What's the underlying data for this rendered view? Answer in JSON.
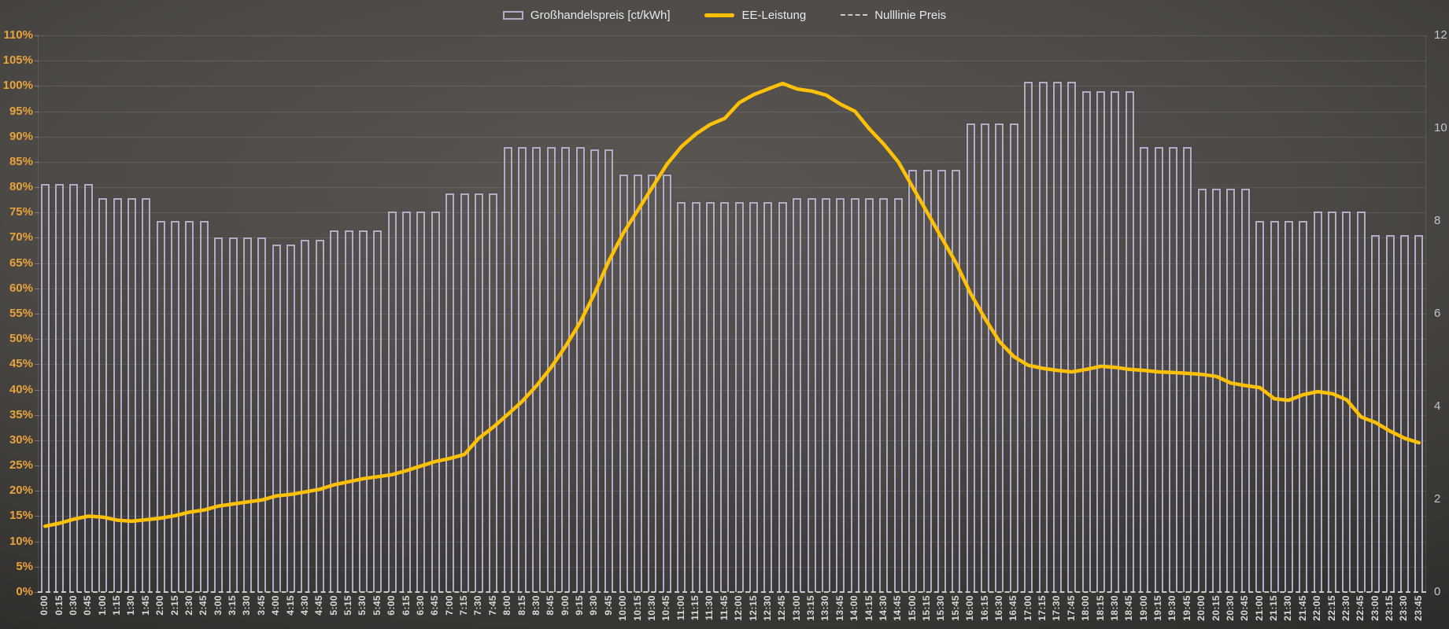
{
  "legend": {
    "items": [
      {
        "label": "Großhandelspreis [ct/kWh]",
        "swatch": "bar-outline",
        "color": "#b2aac6"
      },
      {
        "label": "EE-Leistung",
        "swatch": "line",
        "color": "#ffc107"
      },
      {
        "label": "Nulllinie Preis",
        "swatch": "dashed-line",
        "color": "#c9c9c9"
      }
    ]
  },
  "chart_data": {
    "type": "combo",
    "title": "",
    "grid": true,
    "legend_position": "top-center",
    "categories": [
      "0:00",
      "0:15",
      "0:30",
      "0:45",
      "1:00",
      "1:15",
      "1:30",
      "1:45",
      "2:00",
      "2:15",
      "2:30",
      "2:45",
      "3:00",
      "3:15",
      "3:30",
      "3:45",
      "4:00",
      "4:15",
      "4:30",
      "4:45",
      "5:00",
      "5:15",
      "5:30",
      "5:45",
      "6:00",
      "6:15",
      "6:30",
      "6:45",
      "7:00",
      "7:15",
      "7:30",
      "7:45",
      "8:00",
      "8:15",
      "8:30",
      "8:45",
      "9:00",
      "9:15",
      "9:30",
      "9:45",
      "10:00",
      "10:15",
      "10:30",
      "10:45",
      "11:00",
      "11:15",
      "11:30",
      "11:45",
      "12:00",
      "12:15",
      "12:30",
      "12:45",
      "13:00",
      "13:15",
      "13:30",
      "13:45",
      "14:00",
      "14:15",
      "14:30",
      "14:45",
      "15:00",
      "15:15",
      "15:30",
      "15:45",
      "16:00",
      "16:15",
      "16:30",
      "16:45",
      "17:00",
      "17:15",
      "17:30",
      "17:45",
      "18:00",
      "18:15",
      "18:30",
      "18:45",
      "19:00",
      "19:15",
      "19:30",
      "19:45",
      "20:00",
      "20:15",
      "20:30",
      "20:45",
      "21:00",
      "21:15",
      "21:30",
      "21:45",
      "22:00",
      "22:15",
      "22:30",
      "22:45",
      "23:00",
      "23:15",
      "23:30",
      "23:45"
    ],
    "left_axis": {
      "min": 0,
      "max": 110,
      "step": 5,
      "suffix": "%",
      "color": "#e8a33d",
      "labels": [
        "0%",
        "5%",
        "10%",
        "15%",
        "20%",
        "25%",
        "30%",
        "35%",
        "40%",
        "45%",
        "50%",
        "55%",
        "60%",
        "65%",
        "70%",
        "75%",
        "80%",
        "85%",
        "90%",
        "95%",
        "100%",
        "105%",
        "110%"
      ]
    },
    "right_axis": {
      "min": 0,
      "max": 12,
      "step": 2,
      "color": "#c4c2cc",
      "labels": [
        "0",
        "2",
        "4",
        "6",
        "8",
        "10",
        "12"
      ]
    },
    "series": [
      {
        "name": "Großhandelspreis [ct/kWh]",
        "type": "bar",
        "axis": "right",
        "color": "#b4abc7",
        "values": [
          8.8,
          8.8,
          8.8,
          8.8,
          8.5,
          8.5,
          8.5,
          8.5,
          8.0,
          8.0,
          8.0,
          8.0,
          7.65,
          7.65,
          7.65,
          7.65,
          7.5,
          7.5,
          7.6,
          7.6,
          7.8,
          7.8,
          7.8,
          7.8,
          8.2,
          8.2,
          8.2,
          8.2,
          8.6,
          8.6,
          8.6,
          8.6,
          9.6,
          9.6,
          9.6,
          9.6,
          9.6,
          9.6,
          9.55,
          9.55,
          9.0,
          9.0,
          9.0,
          9.0,
          8.4,
          8.4,
          8.4,
          8.4,
          8.4,
          8.4,
          8.4,
          8.4,
          8.5,
          8.5,
          8.5,
          8.5,
          8.5,
          8.5,
          8.5,
          8.5,
          9.1,
          9.1,
          9.1,
          9.1,
          10.1,
          10.1,
          10.1,
          10.1,
          11.0,
          11.0,
          11.0,
          11.0,
          10.8,
          10.8,
          10.8,
          10.8,
          9.6,
          9.6,
          9.6,
          9.6,
          8.7,
          8.7,
          8.7,
          8.7,
          8.0,
          8.0,
          8.0,
          8.0,
          8.2,
          8.2,
          8.2,
          8.2,
          7.7,
          7.7,
          7.7,
          7.7
        ]
      },
      {
        "name": "EE-Leistung",
        "type": "line",
        "axis": "left",
        "color": "#ffc107",
        "values": [
          13.0,
          13.6,
          14.4,
          15.0,
          14.8,
          14.2,
          14.0,
          14.3,
          14.6,
          15.1,
          15.8,
          16.2,
          17.0,
          17.4,
          17.8,
          18.2,
          19.0,
          19.3,
          19.8,
          20.3,
          21.2,
          21.8,
          22.4,
          22.8,
          23.2,
          24.0,
          24.9,
          25.8,
          26.4,
          27.2,
          30.4,
          32.6,
          35.1,
          37.7,
          40.8,
          44.4,
          48.6,
          53.3,
          59.0,
          65.5,
          71.0,
          75.5,
          80.0,
          84.5,
          88.0,
          90.5,
          92.4,
          93.6,
          96.7,
          98.3,
          99.4,
          100.5,
          99.4,
          99.0,
          98.2,
          96.4,
          95.0,
          91.5,
          88.5,
          85.0,
          80.0,
          75.0,
          70.0,
          65.0,
          59.0,
          54.0,
          49.5,
          46.5,
          44.8,
          44.2,
          43.8,
          43.5,
          44.0,
          44.6,
          44.4,
          44.0,
          43.8,
          43.5,
          43.4,
          43.2,
          43.0,
          42.6,
          41.3,
          40.8,
          40.4,
          38.2,
          37.9,
          39.0,
          39.6,
          39.2,
          38.0,
          34.6,
          33.5,
          31.8,
          30.4,
          29.5
        ]
      },
      {
        "name": "Nulllinie Preis",
        "type": "zero-line",
        "axis": "right",
        "value": 0,
        "style": "dashed",
        "color": "#c9c9c9"
      }
    ]
  }
}
